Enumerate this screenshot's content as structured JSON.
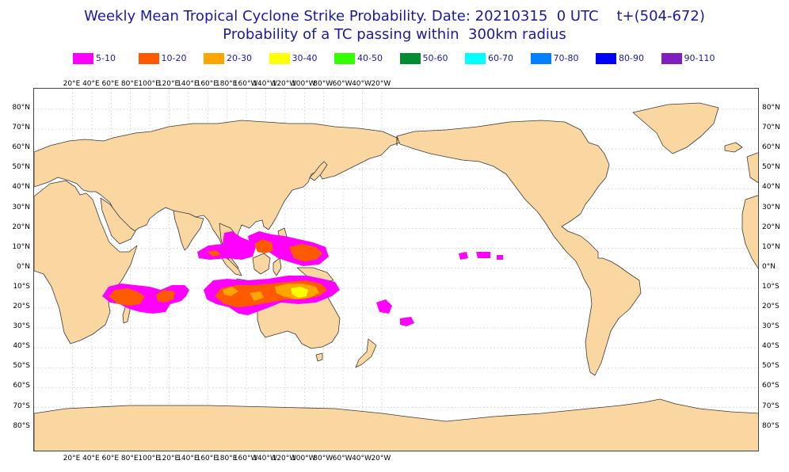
{
  "title_line1": "Weekly Mean Tropical Cyclone Strike Probability. Date: 20210315  0 UTC    t+(504-672)",
  "title_line2": "Probability of a TC passing within  300km radius",
  "legend": [
    {
      "label": "5-10",
      "color": "#ff00ff"
    },
    {
      "label": "10-20",
      "color": "#ff5a00"
    },
    {
      "label": "20-30",
      "color": "#ffa500"
    },
    {
      "label": "30-40",
      "color": "#ffff00"
    },
    {
      "label": "40-50",
      "color": "#33ff00"
    },
    {
      "label": "50-60",
      "color": "#008c30"
    },
    {
      "label": "60-70",
      "color": "#00ffff"
    },
    {
      "label": "70-80",
      "color": "#0080ff"
    },
    {
      "label": "80-90",
      "color": "#0000ff"
    },
    {
      "label": "90-110",
      "color": "#7f1fbf"
    }
  ],
  "lon_ticks": [
    "20°E",
    "40°E",
    "60°E",
    "80°E",
    "100°E",
    "120°E",
    "140°E",
    "160°E",
    "180°E",
    "160°W",
    "140°W",
    "120°W",
    "100°W",
    "80°W",
    "60°W",
    "40°W",
    "20°W"
  ],
  "lat_ticks": [
    "80°N",
    "70°N",
    "60°N",
    "50°N",
    "40°N",
    "30°N",
    "20°N",
    "10°N",
    "0°N",
    "10°S",
    "20°S",
    "30°S",
    "40°S",
    "50°S",
    "60°S",
    "70°S",
    "80°S"
  ],
  "colors": {
    "land": "#fad7a0",
    "coast": "#3a3a3a",
    "grid": "#c8c8c8",
    "title": "#1a1aa0"
  }
}
